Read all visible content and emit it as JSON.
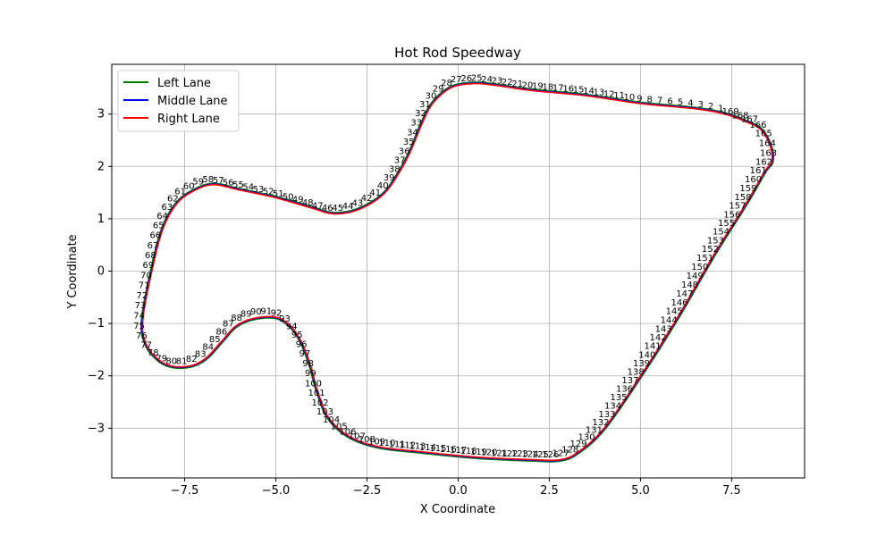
{
  "chart_data": {
    "type": "line",
    "title": "Hot Rod Speedway",
    "xlabel": "X Coordinate",
    "ylabel": "Y Coordinate",
    "xlim": [
      -9.5,
      9.5
    ],
    "ylim": [
      -3.95,
      3.95
    ],
    "xticks": [
      -7.5,
      -5.0,
      -2.5,
      0.0,
      2.5,
      5.0,
      7.5
    ],
    "xtick_labels": [
      "−7.5",
      "−5.0",
      "−2.5",
      "0.0",
      "2.5",
      "5.0",
      "7.5"
    ],
    "yticks": [
      -3,
      -2,
      -1,
      0,
      1,
      2,
      3
    ],
    "ytick_labels": [
      "−3",
      "−2",
      "−1",
      "0",
      "1",
      "2",
      "3"
    ],
    "grid": true,
    "legend_position": "top-left",
    "series": [
      {
        "name": "Left Lane",
        "color": "#008000"
      },
      {
        "name": "Middle Lane",
        "color": "#0000ff"
      },
      {
        "name": "Right Lane",
        "color": "#ff0000"
      }
    ],
    "centerline": [
      [
        7.3,
        3.0
      ],
      [
        6.5,
        3.1
      ],
      [
        5.0,
        3.2
      ],
      [
        3.5,
        3.35
      ],
      [
        2.0,
        3.45
      ],
      [
        1.0,
        3.55
      ],
      [
        0.4,
        3.58
      ],
      [
        -0.2,
        3.5
      ],
      [
        -0.7,
        3.2
      ],
      [
        -1.0,
        2.8
      ],
      [
        -1.3,
        2.3
      ],
      [
        -1.6,
        1.9
      ],
      [
        -2.0,
        1.5
      ],
      [
        -2.5,
        1.25
      ],
      [
        -3.0,
        1.12
      ],
      [
        -3.5,
        1.1
      ],
      [
        -4.0,
        1.2
      ],
      [
        -5.0,
        1.4
      ],
      [
        -6.0,
        1.55
      ],
      [
        -6.7,
        1.65
      ],
      [
        -7.2,
        1.55
      ],
      [
        -7.7,
        1.3
      ],
      [
        -8.1,
        0.8
      ],
      [
        -8.4,
        0.0
      ],
      [
        -8.65,
        -0.95
      ],
      [
        -8.55,
        -1.4
      ],
      [
        -8.2,
        -1.7
      ],
      [
        -7.8,
        -1.82
      ],
      [
        -7.3,
        -1.8
      ],
      [
        -6.9,
        -1.65
      ],
      [
        -6.5,
        -1.35
      ],
      [
        -6.1,
        -1.05
      ],
      [
        -5.6,
        -0.9
      ],
      [
        -5.0,
        -0.88
      ],
      [
        -4.6,
        -1.05
      ],
      [
        -4.3,
        -1.35
      ],
      [
        -4.05,
        -1.8
      ],
      [
        -3.85,
        -2.3
      ],
      [
        -3.55,
        -2.8
      ],
      [
        -3.0,
        -3.15
      ],
      [
        -2.2,
        -3.35
      ],
      [
        -1.0,
        -3.45
      ],
      [
        0.5,
        -3.55
      ],
      [
        2.0,
        -3.6
      ],
      [
        2.8,
        -3.6
      ],
      [
        3.3,
        -3.45
      ],
      [
        4.0,
        -3.0
      ],
      [
        5.0,
        -2.0
      ],
      [
        6.0,
        -0.9
      ],
      [
        7.0,
        0.3
      ],
      [
        7.9,
        1.3
      ],
      [
        8.4,
        1.9
      ],
      [
        8.6,
        2.1
      ],
      [
        8.55,
        2.4
      ],
      [
        8.3,
        2.7
      ],
      [
        7.9,
        2.85
      ],
      [
        7.3,
        3.0
      ]
    ],
    "point_labels": [
      "1",
      "2",
      "3",
      "4",
      "5",
      "6",
      "7",
      "8",
      "9",
      "10",
      "11",
      "12",
      "13",
      "14",
      "15",
      "16",
      "17",
      "18",
      "19",
      "20",
      "21",
      "22",
      "23",
      "24",
      "25",
      "26",
      "27",
      "28",
      "29",
      "30",
      "31",
      "32",
      "33",
      "34",
      "35",
      "36",
      "37",
      "38",
      "39",
      "40",
      "41",
      "42",
      "43",
      "44",
      "45",
      "46",
      "47",
      "48",
      "49",
      "50",
      "51",
      "52",
      "53",
      "54",
      "55",
      "56",
      "57",
      "58",
      "59",
      "60",
      "61",
      "62",
      "63",
      "64",
      "65",
      "66",
      "67",
      "68",
      "69",
      "70",
      "71",
      "72",
      "73",
      "74",
      "75",
      "76",
      "77",
      "78",
      "79",
      "80",
      "81",
      "82",
      "83",
      "84",
      "85",
      "86",
      "87",
      "88",
      "89",
      "90",
      "91",
      "92",
      "93",
      "94",
      "95",
      "96",
      "97",
      "98",
      "99",
      "100",
      "101",
      "102",
      "103",
      "104",
      "105",
      "106",
      "107",
      "108",
      "109",
      "110",
      "111",
      "112",
      "113",
      "114",
      "115",
      "116",
      "117",
      "118",
      "119",
      "120",
      "121",
      "122",
      "123",
      "124",
      "125",
      "126",
      "127",
      "128",
      "129",
      "130",
      "131",
      "132",
      "133",
      "134",
      "135",
      "136",
      "137",
      "138",
      "139",
      "140",
      "141",
      "142",
      "143",
      "144",
      "145",
      "146",
      "147",
      "148",
      "149",
      "150",
      "151",
      "152",
      "153",
      "154",
      "155",
      "156",
      "157",
      "158",
      "159",
      "160",
      "161",
      "162",
      "163",
      "164",
      "165",
      "166",
      "167",
      "168",
      "169"
    ]
  }
}
